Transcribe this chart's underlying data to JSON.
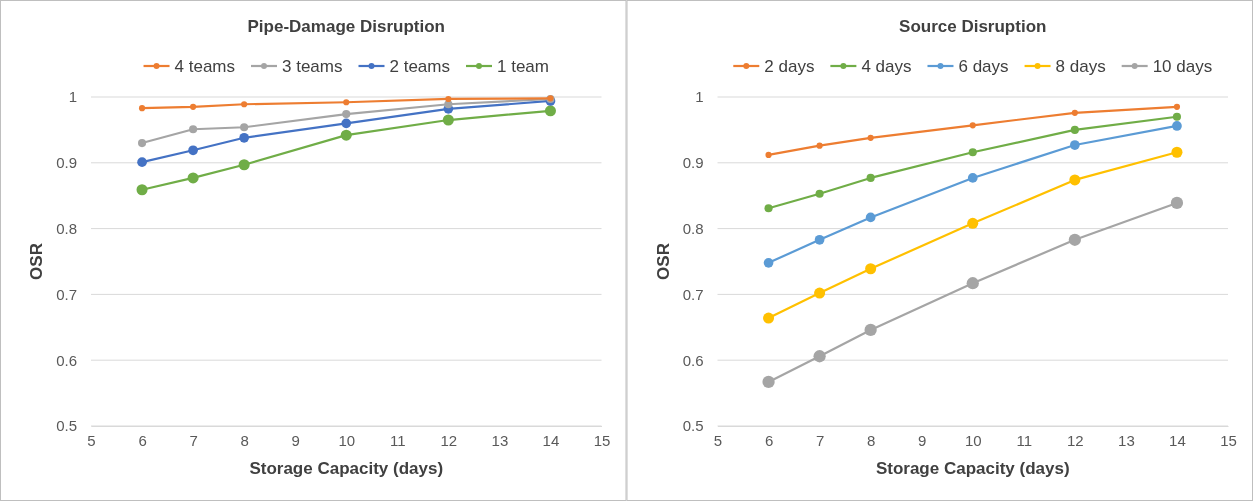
{
  "chart_data": [
    {
      "type": "line",
      "title": "Pipe-Damage Disruption",
      "xlabel": "Storage Capacity (days)",
      "ylabel": "OSR",
      "x": [
        6,
        7,
        8,
        10,
        12,
        14
      ],
      "xlim": [
        5,
        15
      ],
      "xticks": [
        5,
        6,
        7,
        8,
        9,
        10,
        11,
        12,
        13,
        14,
        15
      ],
      "ylim": [
        0.5,
        1
      ],
      "yticks": [
        0.5,
        0.6,
        0.7,
        0.8,
        0.9,
        1
      ],
      "grid": "y",
      "legend": "top",
      "marker": "circle",
      "series": [
        {
          "name": "4 teams",
          "color": "#ed7d31",
          "values": [
            0.983,
            0.985,
            0.989,
            0.992,
            0.997,
            0.998
          ]
        },
        {
          "name": "3 teams",
          "color": "#a5a5a5",
          "values": [
            0.93,
            0.951,
            0.954,
            0.974,
            0.989,
            0.997
          ]
        },
        {
          "name": "2 teams",
          "color": "#4472c4",
          "values": [
            0.901,
            0.919,
            0.938,
            0.96,
            0.982,
            0.994
          ]
        },
        {
          "name": "1 team",
          "color": "#70ad47",
          "values": [
            0.859,
            0.877,
            0.897,
            0.942,
            0.965,
            0.979
          ]
        }
      ]
    },
    {
      "type": "line",
      "title": "Source Disruption",
      "xlabel": "Storage Capacity (days)",
      "ylabel": "OSR",
      "x": [
        6,
        7,
        8,
        10,
        12,
        14
      ],
      "xlim": [
        5,
        15
      ],
      "xticks": [
        5,
        6,
        7,
        8,
        9,
        10,
        11,
        12,
        13,
        14,
        15
      ],
      "ylim": [
        0.5,
        1
      ],
      "yticks": [
        0.5,
        0.6,
        0.7,
        0.8,
        0.9,
        1
      ],
      "grid": "y",
      "legend": "top",
      "marker": "circle",
      "series": [
        {
          "name": "2 days",
          "color": "#ed7d31",
          "values": [
            0.912,
            0.926,
            0.938,
            0.957,
            0.976,
            0.985
          ]
        },
        {
          "name": "4 days",
          "color": "#70ad47",
          "values": [
            0.831,
            0.853,
            0.877,
            0.916,
            0.95,
            0.97
          ]
        },
        {
          "name": "6 days",
          "color": "#5b9bd5",
          "values": [
            0.748,
            0.783,
            0.817,
            0.877,
            0.927,
            0.956
          ]
        },
        {
          "name": "8 days",
          "color": "#ffc000",
          "values": [
            0.664,
            0.702,
            0.739,
            0.808,
            0.874,
            0.916
          ]
        },
        {
          "name": "10 days",
          "color": "#a5a5a5",
          "values": [
            0.567,
            0.606,
            0.646,
            0.717,
            0.783,
            0.839
          ]
        }
      ]
    }
  ]
}
